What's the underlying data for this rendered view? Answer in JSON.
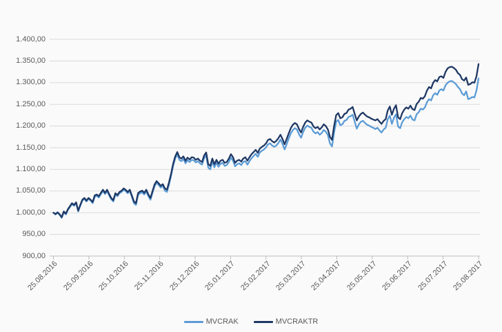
{
  "colors": {
    "background": "#fafafa",
    "gridline": "#d9d9d9",
    "axis": "#bdbdbd",
    "label_text": "#595959",
    "series_mvcrak": "#5b9bd5",
    "series_mvcraktr": "#1f3864"
  },
  "legend": {
    "items": [
      {
        "label": "MVCRAK",
        "swatch": "line"
      },
      {
        "label": "MVCRAKTR",
        "swatch": "line"
      }
    ]
  },
  "chart_data": {
    "type": "line",
    "title": "",
    "xlabel": "",
    "ylabel": "",
    "grid": true,
    "legend_position": "bottom",
    "ylim": [
      900,
      1400
    ],
    "y_tick_step": 50,
    "y_tick_labels": [
      "1.400,00",
      "1.350,00",
      "1.300,00",
      "1.250,00",
      "1.200,00",
      "1.150,00",
      "1.100,00",
      "1.050,00",
      "1.000,00",
      "950,00",
      "900,00"
    ],
    "x_tick_labels": [
      "25.08.2016",
      "25.09.2016",
      "25.10.2016",
      "25.11.2016",
      "25.12.2016",
      "25.01.2017",
      "25.02.2017",
      "25.03.2017",
      "25.04.2017",
      "25.05.2017",
      "25.06.2017",
      "25.07.2017",
      "25.08.2017"
    ],
    "series": [
      {
        "name": "MVCRAK",
        "color": "#5b9bd5",
        "values": [
          1000,
          996,
          1000,
          995,
          988,
          1001,
          996,
          1006,
          1013,
          1020,
          1016,
          1022,
          1003,
          1016,
          1028,
          1032,
          1026,
          1032,
          1028,
          1022,
          1037,
          1039,
          1035,
          1043,
          1050,
          1043,
          1050,
          1040,
          1031,
          1026,
          1042,
          1038,
          1045,
          1048,
          1053,
          1050,
          1045,
          1050,
          1037,
          1022,
          1018,
          1041,
          1045,
          1047,
          1042,
          1049,
          1038,
          1030,
          1046,
          1061,
          1069,
          1064,
          1058,
          1062,
          1051,
          1048,
          1065,
          1085,
          1108,
          1125,
          1135,
          1122,
          1119,
          1124,
          1114,
          1121,
          1117,
          1122,
          1121,
          1116,
          1119,
          1114,
          1111,
          1126,
          1132,
          1104,
          1100,
          1118,
          1105,
          1115,
          1106,
          1113,
          1115,
          1108,
          1110,
          1117,
          1127,
          1120,
          1107,
          1112,
          1114,
          1110,
          1117,
          1119,
          1111,
          1119,
          1126,
          1131,
          1136,
          1129,
          1139,
          1143,
          1146,
          1151,
          1158,
          1160,
          1155,
          1152,
          1155,
          1161,
          1169,
          1159,
          1146,
          1158,
          1171,
          1183,
          1191,
          1195,
          1192,
          1181,
          1173,
          1186,
          1196,
          1201,
          1198,
          1196,
          1187,
          1183,
          1186,
          1180,
          1184,
          1191,
          1187,
          1179,
          1160,
          1153,
          1185,
          1210,
          1214,
          1202,
          1204,
          1212,
          1214,
          1221,
          1223,
          1226,
          1210,
          1194,
          1204,
          1210,
          1212,
          1207,
          1203,
          1201,
          1198,
          1196,
          1193,
          1196,
          1190,
          1185,
          1192,
          1196,
          1216,
          1224,
          1205,
          1219,
          1227,
          1199,
          1195,
          1209,
          1216,
          1221,
          1218,
          1224,
          1215,
          1213,
          1227,
          1232,
          1240,
          1238,
          1243,
          1255,
          1262,
          1259,
          1271,
          1276,
          1272,
          1282,
          1285,
          1282,
          1294,
          1300,
          1303,
          1304,
          1301,
          1297,
          1290,
          1285,
          1275,
          1271,
          1280,
          1262,
          1264,
          1267,
          1266,
          1282,
          1310
        ]
      },
      {
        "name": "MVCRAKTR",
        "color": "#1f3864",
        "values": [
          1000,
          997,
          1001,
          996,
          990,
          1003,
          998,
          1008,
          1015,
          1022,
          1018,
          1024,
          1005,
          1018,
          1030,
          1034,
          1028,
          1034,
          1030,
          1025,
          1040,
          1042,
          1038,
          1046,
          1053,
          1046,
          1053,
          1043,
          1034,
          1029,
          1045,
          1041,
          1048,
          1051,
          1056,
          1053,
          1048,
          1053,
          1040,
          1026,
          1022,
          1045,
          1049,
          1051,
          1046,
          1053,
          1042,
          1034,
          1050,
          1065,
          1073,
          1068,
          1062,
          1066,
          1056,
          1053,
          1070,
          1090,
          1113,
          1130,
          1140,
          1128,
          1125,
          1130,
          1120,
          1127,
          1123,
          1128,
          1127,
          1122,
          1125,
          1120,
          1117,
          1132,
          1139,
          1112,
          1108,
          1125,
          1112,
          1122,
          1113,
          1120,
          1122,
          1115,
          1117,
          1125,
          1135,
          1128,
          1115,
          1120,
          1122,
          1118,
          1125,
          1128,
          1120,
          1128,
          1135,
          1140,
          1145,
          1138,
          1148,
          1152,
          1155,
          1160,
          1168,
          1170,
          1165,
          1162,
          1166,
          1172,
          1180,
          1170,
          1158,
          1170,
          1183,
          1195,
          1203,
          1207,
          1204,
          1193,
          1185,
          1198,
          1208,
          1213,
          1210,
          1208,
          1199,
          1195,
          1198,
          1192,
          1197,
          1204,
          1200,
          1192,
          1175,
          1168,
          1200,
          1225,
          1230,
          1218,
          1220,
          1228,
          1230,
          1238,
          1240,
          1244,
          1228,
          1213,
          1222,
          1228,
          1231,
          1226,
          1222,
          1220,
          1217,
          1215,
          1213,
          1216,
          1210,
          1205,
          1212,
          1216,
          1236,
          1245,
          1226,
          1240,
          1248,
          1220,
          1216,
          1230,
          1238,
          1243,
          1240,
          1247,
          1239,
          1237,
          1251,
          1256,
          1265,
          1263,
          1269,
          1282,
          1290,
          1287,
          1300,
          1306,
          1303,
          1313,
          1315,
          1311,
          1325,
          1333,
          1336,
          1337,
          1334,
          1330,
          1322,
          1318,
          1308,
          1305,
          1312,
          1295,
          1297,
          1301,
          1300,
          1315,
          1343
        ]
      }
    ]
  }
}
